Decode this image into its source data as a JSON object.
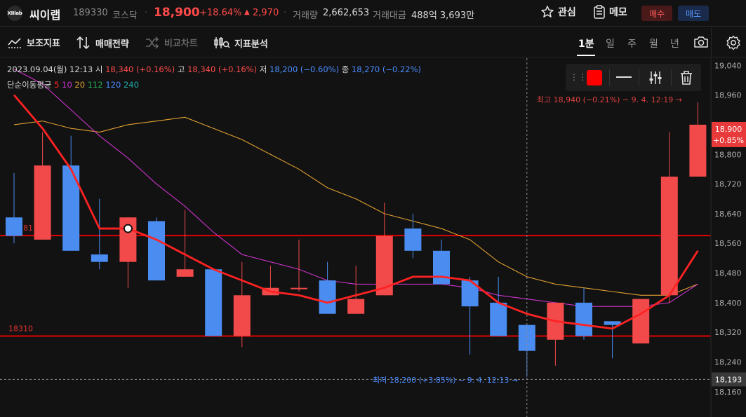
{
  "header": {
    "logo_text": "XIIlab",
    "name": "씨이랩",
    "code": "189330",
    "market": "코스닥",
    "price": "18,900",
    "change_rate": "+18.64%",
    "change_arrow": "▲",
    "change_value": "2,970",
    "volume_label": "거래량",
    "volume": "2,662,653",
    "amount_label": "거래대금",
    "amount": "488억 3,693만",
    "favorite_label": "관심",
    "memo_label": "메모",
    "buy_label": "매수",
    "sell_label": "매도"
  },
  "toolbar": {
    "aux_indicator": "보조지표",
    "trade_strategy": "매매전략",
    "compare_chart": "비교차트",
    "indicator_analysis": "지표분석",
    "periods": [
      "1분",
      "일",
      "주",
      "월",
      "년"
    ],
    "active_period": "1분"
  },
  "info": {
    "datetime": "2023.09.04(월) 12:13",
    "open_label": "시",
    "open": "18,340 (+0.16%)",
    "high_label": "고",
    "high": "18,340 (+0.16%)",
    "low_label": "저",
    "low": "18,200 (−0.60%)",
    "close_label": "종",
    "close": "18,270 (−0.22%)"
  },
  "moving_average": {
    "label": "단순이동평균",
    "periods": [
      "5",
      "10",
      "20",
      "112",
      "120",
      "240"
    ],
    "colors": [
      "#ff2222",
      "#cc33cc",
      "#e0a030",
      "#22aa55",
      "#4a8cff",
      "#22aaaa"
    ]
  },
  "colors": {
    "up": "#f24a4a",
    "down": "#4a8cf0",
    "accent_red": "#ff4a4a",
    "accent_blue": "#4a8cff"
  },
  "chart_data": {
    "type": "candlestick",
    "ylim": [
      18120,
      19050
    ],
    "y_ticks": [
      19040,
      18960,
      18880,
      18800,
      18720,
      18640,
      18560,
      18480,
      18400,
      18320,
      18240,
      18160
    ],
    "candles": [
      {
        "o": 18630,
        "h": 18750,
        "l": 18560,
        "c": 18580
      },
      {
        "o": 18570,
        "h": 18860,
        "l": 18570,
        "c": 18770
      },
      {
        "o": 18770,
        "h": 18850,
        "l": 18540,
        "c": 18540
      },
      {
        "o": 18530,
        "h": 18680,
        "l": 18490,
        "c": 18510
      },
      {
        "o": 18510,
        "h": 18630,
        "l": 18440,
        "c": 18630
      },
      {
        "o": 18620,
        "h": 18630,
        "l": 18460,
        "c": 18460
      },
      {
        "o": 18470,
        "h": 18650,
        "l": 18470,
        "c": 18490
      },
      {
        "o": 18490,
        "h": 18490,
        "l": 18310,
        "c": 18310
      },
      {
        "o": 18310,
        "h": 18510,
        "l": 18280,
        "c": 18420
      },
      {
        "o": 18420,
        "h": 18500,
        "l": 18420,
        "c": 18440
      },
      {
        "o": 18440,
        "h": 18570,
        "l": 18430,
        "c": 18440
      },
      {
        "o": 18460,
        "h": 18510,
        "l": 18370,
        "c": 18370
      },
      {
        "o": 18370,
        "h": 18500,
        "l": 18370,
        "c": 18410
      },
      {
        "o": 18420,
        "h": 18670,
        "l": 18420,
        "c": 18580
      },
      {
        "o": 18600,
        "h": 18640,
        "l": 18520,
        "c": 18540
      },
      {
        "o": 18540,
        "h": 18570,
        "l": 18450,
        "c": 18450
      },
      {
        "o": 18460,
        "h": 18470,
        "l": 18260,
        "c": 18390
      },
      {
        "o": 18400,
        "h": 18470,
        "l": 18310,
        "c": 18310
      },
      {
        "o": 18340,
        "h": 18340,
        "l": 18200,
        "c": 18270
      },
      {
        "o": 18300,
        "h": 18400,
        "l": 18230,
        "c": 18400
      },
      {
        "o": 18400,
        "h": 18440,
        "l": 18300,
        "c": 18310
      },
      {
        "o": 18350,
        "h": 18350,
        "l": 18250,
        "c": 18340
      },
      {
        "o": 18290,
        "h": 18410,
        "l": 18290,
        "c": 18410
      },
      {
        "o": 18420,
        "h": 18860,
        "l": 18400,
        "c": 18740
      },
      {
        "o": 18740,
        "h": 18940,
        "l": 18740,
        "c": 18880
      }
    ],
    "ma5": [
      18960,
      18870,
      18760,
      18600,
      18600,
      18570,
      18530,
      18490,
      18460,
      18430,
      18420,
      18400,
      18420,
      18440,
      18470,
      18470,
      18460,
      18400,
      18370,
      18350,
      18340,
      18330,
      18370,
      18420,
      18540
    ],
    "ma10": [
      19030,
      18990,
      18920,
      18850,
      18790,
      18720,
      18660,
      18590,
      18530,
      18510,
      18490,
      18460,
      18450,
      18450,
      18450,
      18450,
      18440,
      18420,
      18410,
      18400,
      18390,
      18390,
      18390,
      18400,
      18450
    ],
    "ma20": [
      18880,
      18890,
      18870,
      18860,
      18880,
      18890,
      18900,
      18870,
      18840,
      18800,
      18760,
      18710,
      18680,
      18640,
      18620,
      18600,
      18570,
      18510,
      18470,
      18450,
      18440,
      18430,
      18420,
      18420,
      18450
    ],
    "hlines": [
      {
        "value": 18581,
        "label": "18581"
      },
      {
        "value": 18310,
        "label": "18310"
      }
    ],
    "crosshair_value": "18,193",
    "current_price": "18,900",
    "current_rate": "+0.85%",
    "high_note": "최고 18,940 (−0.21%) − 9. 4. 12:19 →",
    "low_note": "최저 18,200 (+3.85%) − 9. 4. 12:13 →",
    "selected_index": 4
  }
}
